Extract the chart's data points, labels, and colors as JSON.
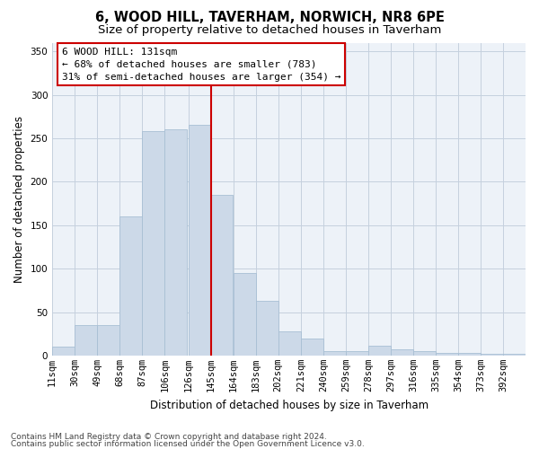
{
  "title": "6, WOOD HILL, TAVERHAM, NORWICH, NR8 6PE",
  "subtitle": "Size of property relative to detached houses in Taverham",
  "xlabel": "Distribution of detached houses by size in Taverham",
  "ylabel": "Number of detached properties",
  "bar_color": "#ccd9e8",
  "bar_edge_color": "#a8bfd4",
  "grid_color": "#c5d0de",
  "bg_color": "#edf2f8",
  "annotation_text": "6 WOOD HILL: 131sqm\n← 68% of detached houses are smaller (783)\n31% of semi-detached houses are larger (354) →",
  "vline_color": "#cc0000",
  "vline_x_index": 6,
  "categories": [
    "11sqm",
    "30sqm",
    "49sqm",
    "68sqm",
    "87sqm",
    "106sqm",
    "126sqm",
    "145sqm",
    "164sqm",
    "183sqm",
    "202sqm",
    "221sqm",
    "240sqm",
    "259sqm",
    "278sqm",
    "297sqm",
    "316sqm",
    "335sqm",
    "354sqm",
    "373sqm",
    "392sqm"
  ],
  "bin_starts": [
    11,
    30,
    49,
    68,
    87,
    106,
    126,
    145,
    164,
    183,
    202,
    221,
    240,
    259,
    278,
    297,
    316,
    335,
    354,
    373,
    392
  ],
  "bin_width": 19,
  "values": [
    10,
    35,
    35,
    160,
    258,
    260,
    265,
    185,
    95,
    63,
    28,
    20,
    5,
    5,
    11,
    7,
    5,
    3,
    3,
    2,
    2
  ],
  "ylim": [
    0,
    360
  ],
  "yticks": [
    0,
    50,
    100,
    150,
    200,
    250,
    300,
    350
  ],
  "footer1": "Contains HM Land Registry data © Crown copyright and database right 2024.",
  "footer2": "Contains public sector information licensed under the Open Government Licence v3.0.",
  "title_fontsize": 10.5,
  "subtitle_fontsize": 9.5,
  "axis_label_fontsize": 8.5,
  "tick_fontsize": 7.5,
  "annotation_fontsize": 8,
  "footer_fontsize": 6.5
}
